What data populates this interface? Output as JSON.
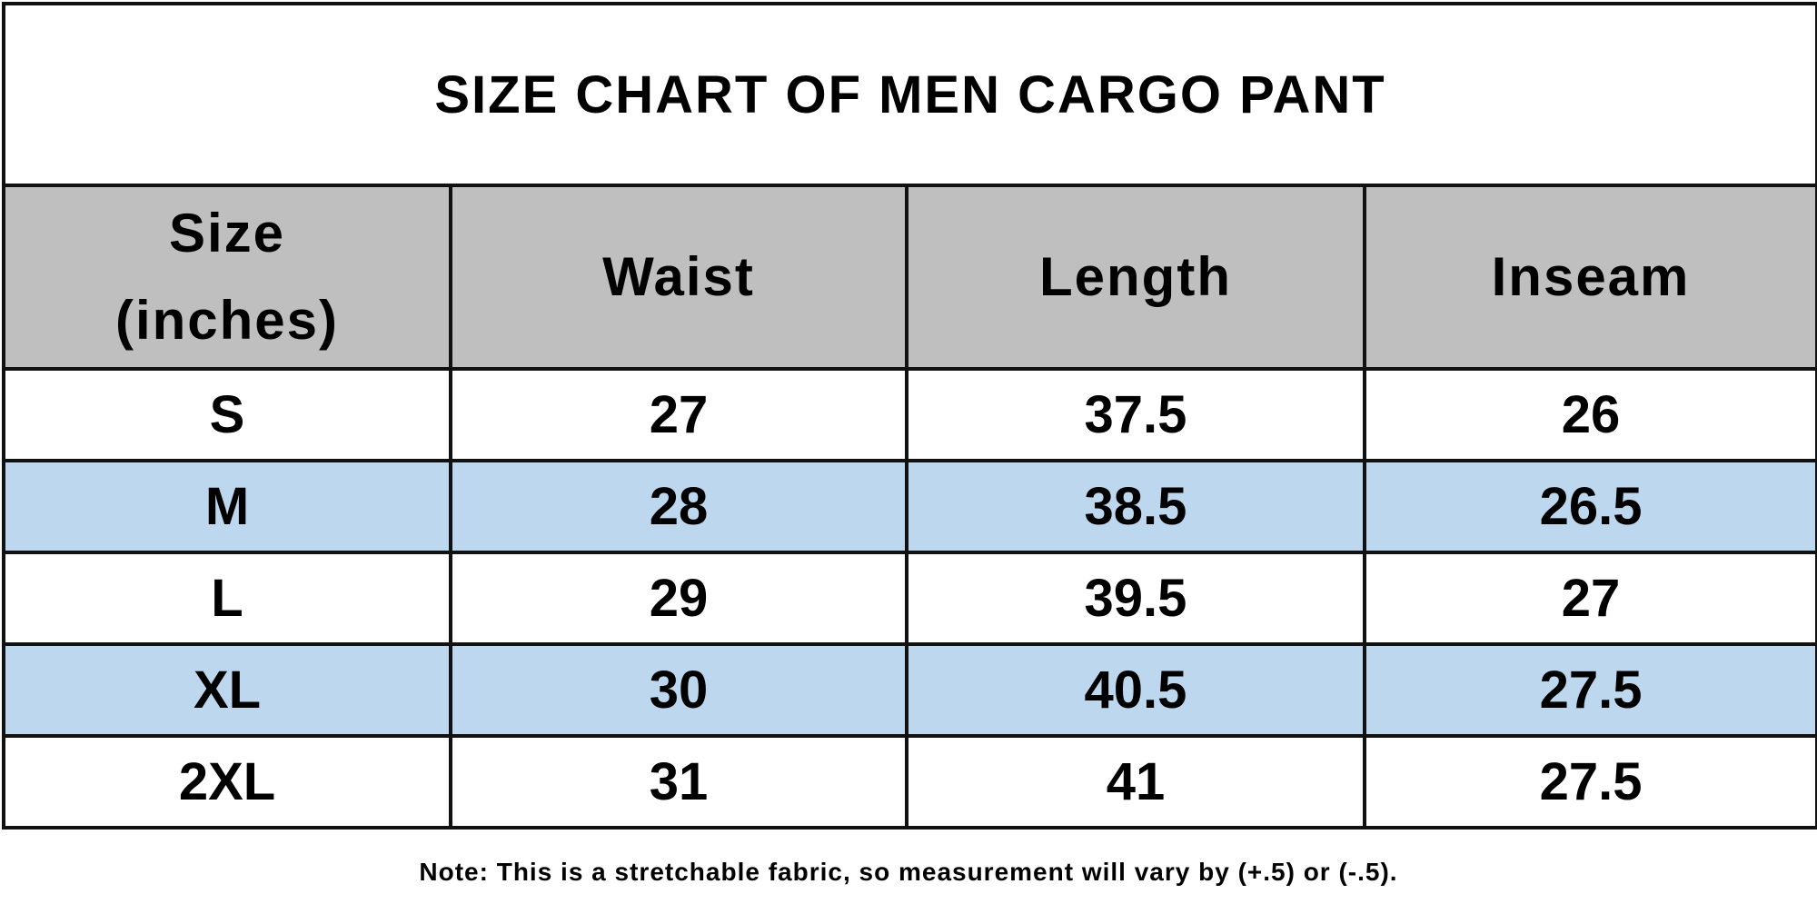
{
  "title": "SIZE CHART OF MEN CARGO PANT",
  "table": {
    "header": [
      "Size\n(inches)",
      "Waist",
      "Length",
      "Inseam"
    ],
    "rows": [
      [
        "S",
        "27",
        "37.5",
        "26"
      ],
      [
        "M",
        "28",
        "38.5",
        "26.5"
      ],
      [
        "L",
        "29",
        "39.5",
        "27"
      ],
      [
        "XL",
        "30",
        "40.5",
        "27.5"
      ],
      [
        "2XL",
        "31",
        "41",
        "27.5"
      ]
    ]
  },
  "note": "Note: This is a stretchable fabric, so measurement will vary by (+.5) or (-.5)."
}
